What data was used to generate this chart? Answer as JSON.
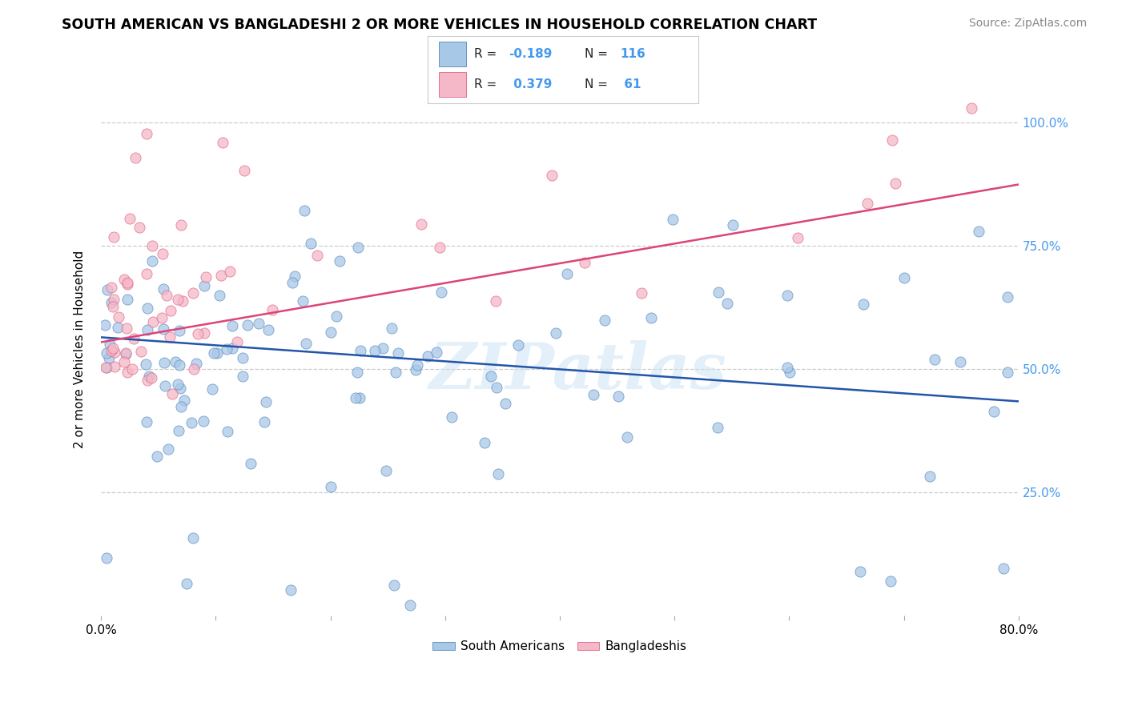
{
  "title": "SOUTH AMERICAN VS BANGLADESHI 2 OR MORE VEHICLES IN HOUSEHOLD CORRELATION CHART",
  "source": "Source: ZipAtlas.com",
  "ylabel": "2 or more Vehicles in Household",
  "ytick_positions": [
    0.25,
    0.5,
    0.75,
    1.0
  ],
  "ytick_labels": [
    "25.0%",
    "50.0%",
    "75.0%",
    "100.0%"
  ],
  "legend_labels": [
    "South Americans",
    "Bangladeshis"
  ],
  "color_blue": "#a8c8e8",
  "color_pink": "#f4b8c8",
  "color_blue_edge": "#5588bb",
  "color_pink_edge": "#e06080",
  "color_blue_line": "#2255aa",
  "color_pink_line": "#dd4477",
  "color_right_axis": "#4499ee",
  "xmin": 0.0,
  "xmax": 0.8,
  "ymin": 0.0,
  "ymax": 1.08,
  "blue_R": -0.189,
  "blue_N": 116,
  "pink_R": 0.379,
  "pink_N": 61,
  "watermark": "ZIPatlas",
  "blue_line_y0": 0.565,
  "blue_line_y1": 0.435,
  "pink_line_y0": 0.555,
  "pink_line_y1": 0.875
}
